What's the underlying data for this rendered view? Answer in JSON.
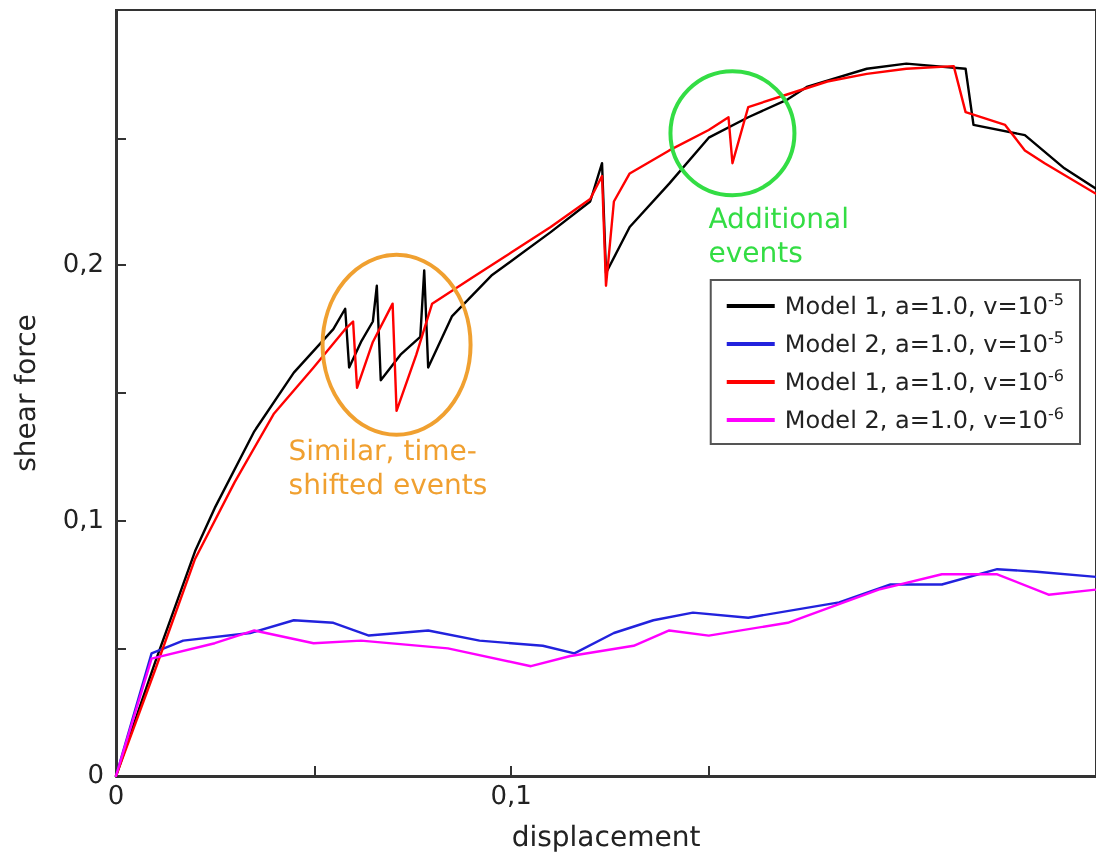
{
  "chart_data": {
    "type": "line",
    "xlabel": "displacement",
    "ylabel": "shear force",
    "xlim": [
      0,
      0.248
    ],
    "ylim": [
      0,
      0.3
    ],
    "xticks": [
      {
        "value": 0,
        "label": "0"
      },
      {
        "value": 0.05,
        "label": null
      },
      {
        "value": 0.1,
        "label": "0,1"
      },
      {
        "value": 0.15,
        "label": null
      }
    ],
    "yticks": [
      {
        "value": 0,
        "label": "0"
      },
      {
        "value": 0.05,
        "label": null
      },
      {
        "value": 0.1,
        "label": "0,1"
      },
      {
        "value": 0.15,
        "label": null
      },
      {
        "value": 0.2,
        "label": "0,2"
      },
      {
        "value": 0.25,
        "label": null
      }
    ],
    "grid": false,
    "legend": "top right",
    "marker": "none",
    "line_style": "solid",
    "annotations": [
      {
        "text": "Similar, time-\nshifted events",
        "x": 0.071,
        "y": 0.143
      },
      {
        "text": "Additional\nevents",
        "x": 0.156,
        "y": 0.24
      }
    ],
    "series": [
      {
        "name": "Model 1, a=1.0, v=10$^{-5}$",
        "color": "#000000",
        "x": [
          0,
          0.01,
          0.02,
          0.025,
          0.035,
          0.045,
          0.055,
          0.058,
          0.059,
          0.062,
          0.065,
          0.066,
          0.067,
          0.072,
          0.077,
          0.078,
          0.079,
          0.085,
          0.095,
          0.11,
          0.12,
          0.123,
          0.124,
          0.13,
          0.14,
          0.15,
          0.16,
          0.17,
          0.175,
          0.19,
          0.2,
          0.215,
          0.217,
          0.23,
          0.24,
          0.248
        ],
        "values": [
          0,
          0.045,
          0.088,
          0.105,
          0.135,
          0.158,
          0.175,
          0.183,
          0.16,
          0.17,
          0.178,
          0.192,
          0.155,
          0.165,
          0.172,
          0.198,
          0.16,
          0.18,
          0.196,
          0.213,
          0.225,
          0.24,
          0.197,
          0.215,
          0.232,
          0.25,
          0.258,
          0.265,
          0.27,
          0.277,
          0.279,
          0.277,
          0.255,
          0.251,
          0.238,
          0.23
        ]
      },
      {
        "name": "Model 2, a=1.0, v=10$^{-5}$",
        "color": "#2222dd",
        "x": [
          0,
          0.009,
          0.017,
          0.034,
          0.045,
          0.055,
          0.064,
          0.079,
          0.092,
          0.108,
          0.116,
          0.126,
          0.136,
          0.146,
          0.16,
          0.183,
          0.196,
          0.209,
          0.223,
          0.233,
          0.248
        ],
        "values": [
          0,
          0.048,
          0.053,
          0.056,
          0.061,
          0.06,
          0.055,
          0.057,
          0.053,
          0.051,
          0.048,
          0.056,
          0.061,
          0.064,
          0.062,
          0.068,
          0.075,
          0.075,
          0.081,
          0.08,
          0.078
        ]
      },
      {
        "name": "Model 1, a=1.0, v=10$^{-6}$",
        "color": "#ff0000",
        "x": [
          0,
          0.01,
          0.02,
          0.03,
          0.04,
          0.05,
          0.058,
          0.06,
          0.061,
          0.065,
          0.07,
          0.071,
          0.076,
          0.08,
          0.09,
          0.1,
          0.11,
          0.12,
          0.123,
          0.124,
          0.126,
          0.13,
          0.14,
          0.15,
          0.155,
          0.156,
          0.16,
          0.17,
          0.18,
          0.19,
          0.2,
          0.212,
          0.215,
          0.225,
          0.23,
          0.235,
          0.248
        ],
        "values": [
          0,
          0.042,
          0.085,
          0.115,
          0.142,
          0.16,
          0.175,
          0.178,
          0.152,
          0.17,
          0.185,
          0.143,
          0.165,
          0.185,
          0.195,
          0.205,
          0.215,
          0.226,
          0.235,
          0.192,
          0.225,
          0.236,
          0.245,
          0.253,
          0.258,
          0.24,
          0.262,
          0.267,
          0.272,
          0.275,
          0.277,
          0.278,
          0.26,
          0.255,
          0.245,
          0.24,
          0.228
        ]
      },
      {
        "name": "Model 2, a=1.0, v=10$^{-6}$",
        "color": "#ff00ff",
        "x": [
          0,
          0.009,
          0.025,
          0.035,
          0.05,
          0.062,
          0.084,
          0.105,
          0.115,
          0.131,
          0.14,
          0.15,
          0.17,
          0.193,
          0.209,
          0.223,
          0.236,
          0.248
        ],
        "values": [
          0,
          0.046,
          0.052,
          0.057,
          0.052,
          0.053,
          0.05,
          0.043,
          0.047,
          0.051,
          0.057,
          0.055,
          0.06,
          0.073,
          0.079,
          0.079,
          0.071,
          0.073
        ]
      }
    ]
  }
}
